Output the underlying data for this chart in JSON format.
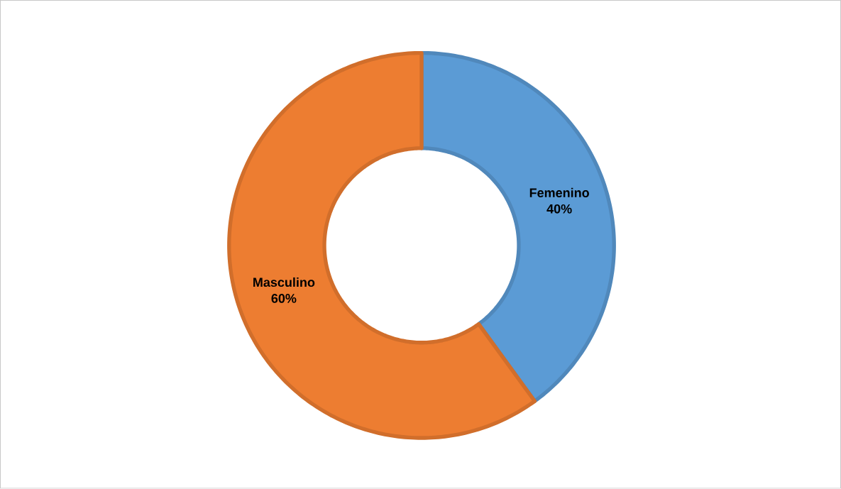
{
  "chart_data": {
    "type": "donut",
    "categories": [
      "Femenino",
      "Masculino"
    ],
    "values": [
      40,
      60
    ],
    "colors": [
      "#5b9bd5",
      "#ed7d31"
    ],
    "value_labels": [
      "40%",
      "60%"
    ]
  }
}
